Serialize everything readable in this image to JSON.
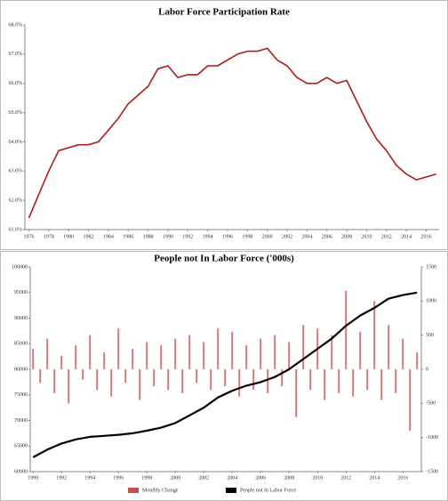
{
  "chart_data": [
    {
      "type": "line",
      "title": "Labor Force Participation Rate",
      "color": "#b01a1a",
      "x": [
        1976,
        1977,
        1978,
        1979,
        1980,
        1981,
        1982,
        1983,
        1984,
        1985,
        1986,
        1987,
        1988,
        1989,
        1990,
        1991,
        1992,
        1993,
        1994,
        1995,
        1996,
        1997,
        1998,
        1999,
        2000,
        2001,
        2002,
        2003,
        2004,
        2005,
        2006,
        2007,
        2008,
        2009,
        2010,
        2011,
        2012,
        2013,
        2014,
        2015,
        2016,
        2017
      ],
      "values": [
        61.4,
        62.2,
        63.0,
        63.7,
        63.8,
        63.9,
        63.9,
        64.0,
        64.4,
        64.8,
        65.3,
        65.6,
        65.9,
        66.5,
        66.6,
        66.2,
        66.3,
        66.3,
        66.6,
        66.6,
        66.8,
        67.0,
        67.1,
        67.1,
        67.2,
        66.8,
        66.6,
        66.2,
        66.0,
        66.0,
        66.2,
        66.0,
        66.1,
        65.4,
        64.7,
        64.1,
        63.7,
        63.2,
        62.9,
        62.7,
        62.8,
        62.9
      ],
      "xlim": [
        1975.6,
        2017.3
      ],
      "xticks": [
        1976,
        1978,
        1980,
        1982,
        1984,
        1986,
        1988,
        1990,
        1992,
        1994,
        1996,
        1998,
        2000,
        2002,
        2004,
        2006,
        2008,
        2010,
        2012,
        2014,
        2016
      ],
      "ylim": [
        61,
        68
      ],
      "yticks": [
        {
          "value": 61,
          "label": "61.0%"
        },
        {
          "value": 62,
          "label": "62.0%"
        },
        {
          "value": 63,
          "label": "63.0%"
        },
        {
          "value": 64,
          "label": "64.0%"
        },
        {
          "value": 65,
          "label": "65.0%"
        },
        {
          "value": 66,
          "label": "66.0%"
        },
        {
          "value": 67,
          "label": "67.0%"
        },
        {
          "value": 68,
          "label": "68.0%"
        }
      ]
    },
    {
      "type": "combo",
      "title": "People not In Labor Force ('000s)",
      "legend": "bottom",
      "series": [
        {
          "name": "Monthly Change",
          "color": "#c0504d",
          "axis": "y2",
          "x": [
            1990,
            1990.5,
            1991,
            1991.5,
            1992,
            1992.5,
            1993,
            1993.5,
            1994,
            1994.5,
            1995,
            1995.5,
            1996,
            1996.5,
            1997,
            1997.5,
            1998,
            1998.5,
            1999,
            1999.5,
            2000,
            2000.5,
            2001,
            2001.5,
            2002,
            2002.5,
            2003,
            2003.5,
            2004,
            2004.5,
            2005,
            2005.5,
            2006,
            2006.5,
            2007,
            2007.5,
            2008,
            2008.5,
            2009,
            2009.5,
            2010,
            2010.5,
            2011,
            2011.5,
            2012,
            2012.5,
            2013,
            2013.5,
            2014,
            2014.5,
            2015,
            2015.5,
            2016,
            2016.5,
            2017
          ],
          "values": [
            300,
            -200,
            450,
            -350,
            200,
            -500,
            350,
            -150,
            500,
            -300,
            250,
            -400,
            600,
            -200,
            300,
            -450,
            400,
            -250,
            350,
            -300,
            450,
            -350,
            500,
            -200,
            400,
            -300,
            600,
            -250,
            550,
            -400,
            350,
            -300,
            450,
            -350,
            500,
            -250,
            400,
            -700,
            650,
            -300,
            600,
            -450,
            500,
            -350,
            1150,
            -400,
            550,
            -300,
            1000,
            -450,
            650,
            -350,
            450,
            -900,
            250
          ]
        },
        {
          "name": "People not In Labor Force",
          "color": "#000000",
          "x": [
            1990,
            1991,
            1992,
            1993,
            1994,
            1995,
            1996,
            1997,
            1998,
            1999,
            2000,
            2001,
            2002,
            2003,
            2004,
            2005,
            2006,
            2007,
            2008,
            2009,
            2010,
            2011,
            2012,
            2013,
            2014,
            2015,
            2016,
            2017
          ],
          "values": [
            62800,
            64300,
            65500,
            66300,
            66800,
            67000,
            67200,
            67500,
            68000,
            68600,
            69500,
            71000,
            72500,
            74500,
            75800,
            76800,
            77500,
            78500,
            80000,
            82000,
            84000,
            86000,
            88500,
            90500,
            92000,
            93800,
            94500,
            95000
          ]
        }
      ],
      "xlim": [
        1989.8,
        2017.3
      ],
      "xticks": [
        1990,
        1992,
        1994,
        1996,
        1998,
        2000,
        2002,
        2004,
        2006,
        2008,
        2010,
        2012,
        2014,
        2016
      ],
      "ylim": [
        60000,
        100000
      ],
      "yticks": [
        60000,
        65000,
        70000,
        75000,
        80000,
        85000,
        90000,
        95000,
        100000
      ],
      "y2lim": [
        -1500,
        1500
      ],
      "y2ticks": [
        -1500,
        -1000,
        -500,
        0,
        500,
        1000,
        1500
      ]
    }
  ]
}
